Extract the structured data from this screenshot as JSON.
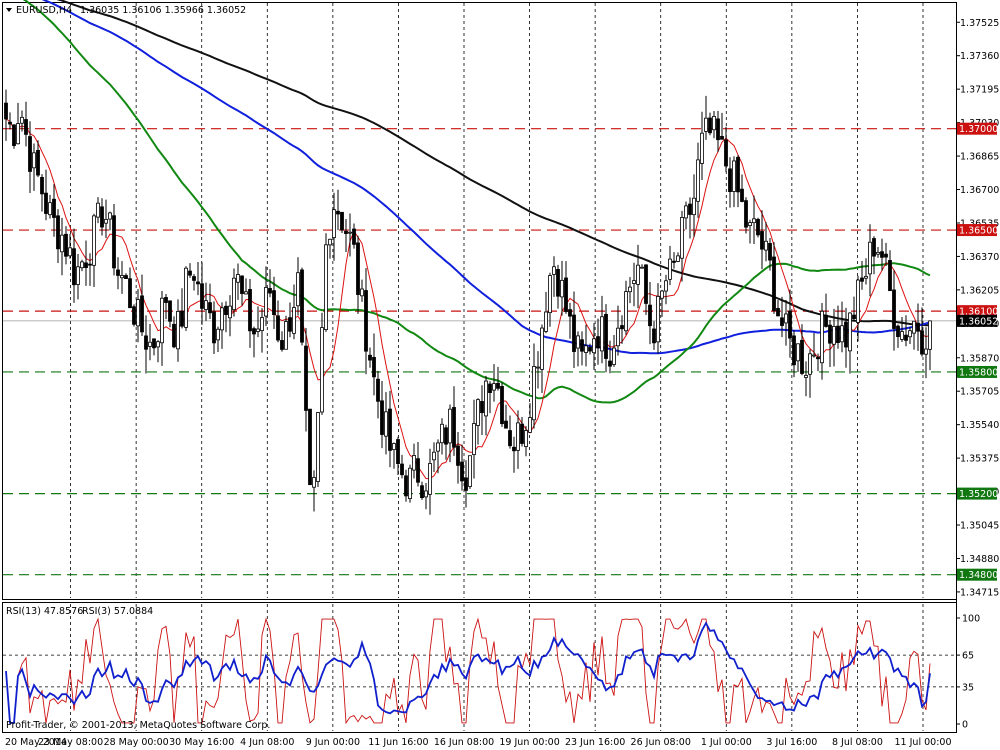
{
  "header": {
    "symbol": "EURUSD,H4",
    "ohlc": "1.36035 1.36106 1.35966 1.36052"
  },
  "rsi_header": {
    "label1": "RSI(13) 47.8576",
    "label2": "RSI(3) 57.0884"
  },
  "footer": {
    "copyright": "Profit-Trader, © 2001-2013, MetaQuotes Software Corp."
  },
  "colors": {
    "candle": "#000000",
    "ma_fast": "#dd1111",
    "ma_green": "#118811",
    "ma_blue": "#1020dd",
    "ma_black": "#111111",
    "resistance": "#cc1111",
    "support": "#117711",
    "current_price": "#000000",
    "rsi13": "#1020cc",
    "rsi3": "#cc1111"
  },
  "chart_data": [
    {
      "type": "candlestick",
      "title": "EURUSD,H4",
      "y_axis_labels": [
        "1.37525",
        "1.37360",
        "1.37195",
        "1.37030",
        "1.36865",
        "1.36700",
        "1.36535",
        "1.36370",
        "1.36205",
        "1.36040",
        "1.35870",
        "1.35705",
        "1.35540",
        "1.35375",
        "1.35210",
        "1.35045",
        "1.34880",
        "1.34715"
      ],
      "ylim": [
        1.34685,
        1.3762
      ],
      "x_axis_labels": [
        "20 May 2014",
        "23 May 08:00",
        "28 May 00:00",
        "30 May 16:00",
        "4 Jun 08:00",
        "9 Jun 00:00",
        "11 Jun 16:00",
        "16 Jun 08:00",
        "19 Jun 00:00",
        "23 Jun 16:00",
        "26 Jun 08:00",
        "1 Jul 00:00",
        "3 Jul 16:00",
        "8 Jul 08:00",
        "11 Jul 00:00"
      ],
      "horizontal_levels": [
        {
          "value": "1.37000",
          "kind": "resistance"
        },
        {
          "value": "1.36500",
          "kind": "resistance"
        },
        {
          "value": "1.36100",
          "kind": "resistance"
        },
        {
          "value": "1.35800",
          "kind": "support"
        },
        {
          "value": "1.35200",
          "kind": "support"
        },
        {
          "value": "1.34800",
          "kind": "support"
        }
      ],
      "current_price": "1.36052",
      "close_path": [
        1.3705,
        1.3698,
        1.3712,
        1.3695,
        1.368,
        1.3672,
        1.366,
        1.3652,
        1.3648,
        1.364,
        1.3628,
        1.3635,
        1.3642,
        1.365,
        1.3662,
        1.3648,
        1.363,
        1.3625,
        1.3615,
        1.3605,
        1.3598,
        1.3592,
        1.3604,
        1.3618,
        1.3602,
        1.36,
        1.3625,
        1.3632,
        1.3615,
        1.3608,
        1.3602,
        1.3612,
        1.362,
        1.363,
        1.3615,
        1.3605,
        1.3598,
        1.361,
        1.362,
        1.3602,
        1.3595,
        1.361,
        1.3625,
        1.3562,
        1.35,
        1.356,
        1.364,
        1.3665,
        1.366,
        1.365,
        1.364,
        1.3615,
        1.3598,
        1.3575,
        1.356,
        1.3545,
        1.3535,
        1.353,
        1.3525,
        1.3532,
        1.3528,
        1.353,
        1.354,
        1.3548,
        1.3555,
        1.3545,
        1.353,
        1.354,
        1.356,
        1.3575,
        1.3582,
        1.357,
        1.3555,
        1.3545,
        1.355,
        1.356,
        1.358,
        1.36,
        1.3625,
        1.3635,
        1.362,
        1.3605,
        1.359,
        1.3585,
        1.3595,
        1.3602,
        1.3598,
        1.3592,
        1.3605,
        1.3615,
        1.3625,
        1.3632,
        1.3615,
        1.36,
        1.361,
        1.3625,
        1.3628,
        1.3642,
        1.3655,
        1.3665,
        1.369,
        1.3698,
        1.3695,
        1.3688,
        1.368,
        1.3672,
        1.366,
        1.3648,
        1.365,
        1.364,
        1.363,
        1.3612,
        1.36,
        1.3592,
        1.359,
        1.3584,
        1.359,
        1.3598,
        1.3602,
        1.3606,
        1.36,
        1.3598,
        1.361,
        1.362,
        1.3632,
        1.3645,
        1.364,
        1.3622,
        1.3608,
        1.36,
        1.3602,
        1.3606,
        1.3598,
        1.3605
      ]
    },
    {
      "type": "line",
      "title": "RSI(13) 47.8576 RSI(3) 57.0884",
      "y_axis_labels": [
        "100",
        "65",
        "35",
        "0"
      ],
      "ylim": [
        0,
        100
      ],
      "levels": [
        65,
        35
      ],
      "series": [
        {
          "name": "RSI(13)",
          "last_value": 47.8576
        },
        {
          "name": "RSI(3)",
          "last_value": 57.0884
        }
      ]
    }
  ]
}
